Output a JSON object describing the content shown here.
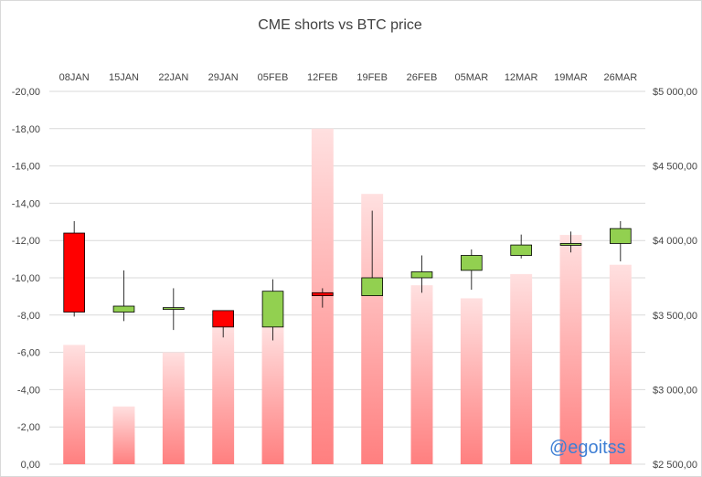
{
  "chart_data": {
    "type": "bar",
    "title": "CME shorts vs BTC price",
    "watermark": "@egoitss",
    "categories": [
      "08JAN",
      "15JAN",
      "22JAN",
      "29JAN",
      "05FEB",
      "12FEB",
      "19FEB",
      "26FEB",
      "05MAR",
      "12MAR",
      "19MAR",
      "26MAR"
    ],
    "left_axis": {
      "ticks": [
        "-20,00",
        "-18,00",
        "-16,00",
        "-14,00",
        "-12,00",
        "-10,00",
        "-8,00",
        "-6,00",
        "-4,00",
        "-2,00",
        "0,00"
      ],
      "ylim": [
        0,
        -20
      ],
      "reversed": true
    },
    "right_axis": {
      "ticks": [
        "$5 000,00",
        "$4 500,00",
        "$4 000,00",
        "$3 500,00",
        "$3 000,00",
        "$2 500,00"
      ],
      "ylim": [
        2500,
        5000
      ]
    },
    "series": [
      {
        "type": "bar",
        "axis": "left",
        "values": [
          -6.4,
          -3.1,
          -6.0,
          -7.4,
          -7.4,
          -18.0,
          -14.5,
          -9.6,
          -8.9,
          -10.2,
          -12.3,
          -10.7
        ]
      },
      {
        "type": "candlestick",
        "axis": "right",
        "candles": [
          {
            "open": 4050,
            "close": 3520,
            "high": 4130,
            "low": 3490
          },
          {
            "open": 3520,
            "close": 3560,
            "high": 3800,
            "low": 3460
          },
          {
            "open": 3540,
            "close": 3550,
            "high": 3680,
            "low": 3400
          },
          {
            "open": 3530,
            "close": 3420,
            "high": 3530,
            "low": 3350
          },
          {
            "open": 3420,
            "close": 3660,
            "high": 3740,
            "low": 3330
          },
          {
            "open": 3650,
            "close": 3630,
            "high": 3680,
            "low": 3550
          },
          {
            "open": 3630,
            "close": 3750,
            "high": 4200,
            "low": 3630
          },
          {
            "open": 3750,
            "close": 3790,
            "high": 3900,
            "low": 3650
          },
          {
            "open": 3800,
            "close": 3900,
            "high": 3940,
            "low": 3670
          },
          {
            "open": 3900,
            "close": 3970,
            "high": 4040,
            "low": 3880
          },
          {
            "open": 3970,
            "close": 3980,
            "high": 4060,
            "low": 3920
          },
          {
            "open": 3980,
            "close": 4080,
            "high": 4130,
            "low": 3860
          }
        ]
      }
    ],
    "grid": true,
    "colors": {
      "bar_top": "#ffe0e0",
      "bar_bottom": "#ff7f7f",
      "candle_up": "#92d050",
      "candle_down": "#ff0000",
      "grid": "#d9d9d9"
    }
  }
}
